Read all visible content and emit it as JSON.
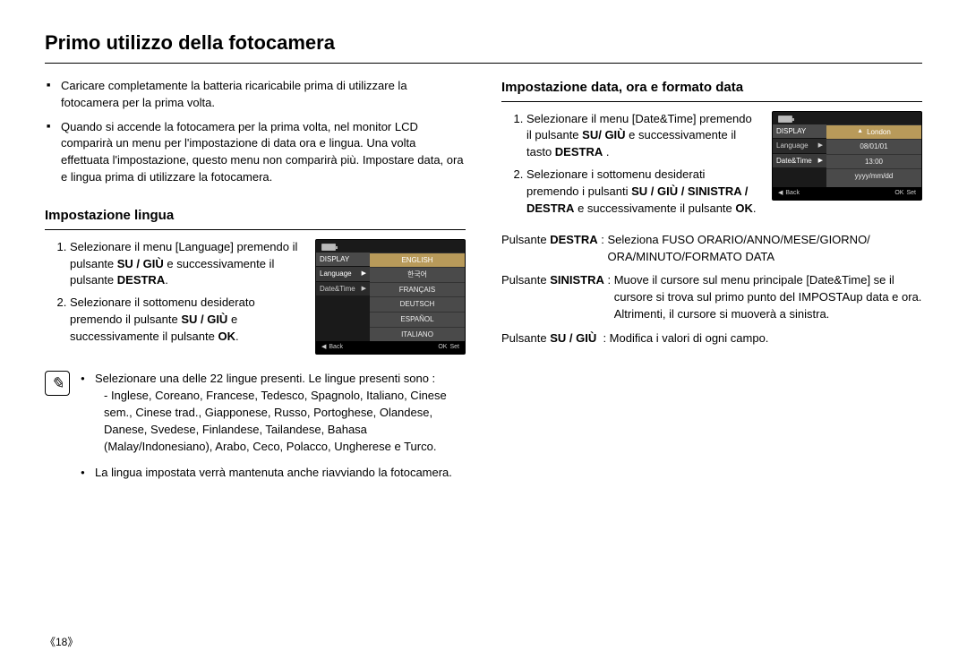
{
  "page": {
    "title": "Primo utilizzo della fotocamera",
    "number": "《18》"
  },
  "intro": {
    "b1": "Caricare completamente la batteria ricaricabile prima di utilizzare la fotocamera per la prima volta.",
    "b2": "Quando si accende la fotocamera per la prima volta, nel monitor LCD comparirà un menu per l'impostazione di data ora e lingua. Una volta effettuata l'impostazione, questo menu non comparirà più. Impostare data, ora e lingua prima di utilizzare la fotocamera."
  },
  "lang": {
    "heading": "Impostazione lingua",
    "s1a": "Selezionare il menu [Language] premendo il pulsante ",
    "s1b": "SU / GIÙ",
    "s1c": " e successivamente il pulsante ",
    "s1d": "DESTRA",
    "s1e": ".",
    "s2a": "Selezionare il sottomenu desiderato premendo il pulsante ",
    "s2b": "SU / GIÙ",
    "s2c": " e successivamente il pulsante ",
    "s2d": "OK",
    "s2e": "."
  },
  "lcd1": {
    "header": "DISPLAY",
    "left1": "Language",
    "left2": "Date&Time",
    "opts": [
      "ENGLISH",
      "한국어",
      "FRANÇAIS",
      "DEUTSCH",
      "ESPAÑOL",
      "ITALIANO"
    ],
    "back": "Back",
    "ok": "OK",
    "set": "Set"
  },
  "note": {
    "n1": "Selezionare una delle 22 lingue presenti.  Le lingue presenti sono :",
    "n1sub": "- Inglese, Coreano, Francese, Tedesco, Spagnolo, Italiano, Cinese sem., Cinese trad., Giapponese, Russo, Portoghese, Olandese, Danese, Svedese, Finlandese, Tailandese, Bahasa (Malay/Indonesiano), Arabo, Ceco, Polacco, Ungherese e Turco.",
    "n2": "La lingua impostata verrà mantenuta anche riavviando la fotocamera."
  },
  "dt": {
    "heading": "Impostazione data, ora e formato data",
    "s1a": "Selezionare il menu [Date&Time] premendo il pulsante ",
    "s1b": "SU/ GIÙ",
    "s1c": "  e successivamente il tasto ",
    "s1d": "DESTRA",
    "s1e": " .",
    "s2a": "Selezionare i sottomenu desiderati premendo i pulsanti ",
    "s2b": "SU / GIÙ / SINISTRA / DESTRA",
    "s2c": " e successivamente il pulsante ",
    "s2d": "OK",
    "s2e": "."
  },
  "lcd2": {
    "header": "DISPLAY",
    "left1": "Language",
    "left2": "Date&Time",
    "val1": "London",
    "val2": "08/01/01",
    "val3": "13:00",
    "val4": "yyyy/mm/dd",
    "back": "Back",
    "ok": "OK",
    "set": "Set"
  },
  "defs": {
    "t1": "Pulsante ",
    "t1b": "DESTRA",
    "c1": " : ",
    "d1": "Seleziona FUSO ORARIO/ANNO/MESE/GIORNO/ ORA/MINUTO/FORMATO DATA",
    "t2": "Pulsante ",
    "t2b": "SINISTRA",
    "c2": " : ",
    "d2": "Muove il cursore sul menu principale [Date&Time] se il cursore si trova sul primo punto del IMPOSTAup data e ora. Altrimenti, il cursore si muoverà a sinistra.",
    "t3": "Pulsante ",
    "t3b": "SU / GIÙ",
    "c3": "  : ",
    "d3": "Modifica i valori di ogni campo."
  }
}
